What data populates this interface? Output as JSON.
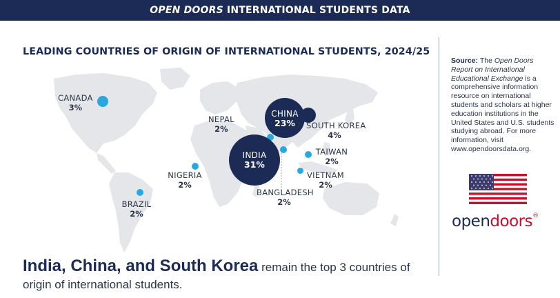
{
  "header": {
    "title_italic": "OPEN DOORS",
    "title_rest": "INTERNATIONAL STUDENTS DATA"
  },
  "heading": "LEADING COUNTRIES OF ORIGIN OF INTERNATIONAL STUDENTS, 2024/25",
  "countries": [
    {
      "name": "CANADA",
      "percent": "3%"
    },
    {
      "name": "NEPAL",
      "percent": "2%"
    },
    {
      "name": "CHINA",
      "percent": "23%"
    },
    {
      "name": "SOUTH KOREA",
      "percent": "4%"
    },
    {
      "name": "INDIA",
      "percent": "31%"
    },
    {
      "name": "TAIWAN",
      "percent": "2%"
    },
    {
      "name": "NIGERIA",
      "percent": "2%"
    },
    {
      "name": "VIETNAM",
      "percent": "2%"
    },
    {
      "name": "BANGLADESH",
      "percent": "2%"
    },
    {
      "name": "BRAZIL",
      "percent": "2%"
    }
  ],
  "summary": {
    "bold": "India, China, and South Korea",
    "rest": " remain the top 3 countries of origin of international students."
  },
  "source": {
    "label": "Source:",
    "the": "The",
    "report": "Open Doors Report on International Educational Exchange",
    "body": "is a comprehensive information resource on international students and scholars at higher education institutions in the United States and U.S. students studying abroad. For more information, visit www.opendoorsdata.org."
  },
  "logo": {
    "open": "open",
    "doors": "doors",
    "mark": "®"
  },
  "colors": {
    "navy": "#1c2b55",
    "map_gray": "#e4e6ea",
    "small_dot": "#29a8e0",
    "large_bubble": "#1c2b55",
    "logo_red": "#c8102e"
  }
}
